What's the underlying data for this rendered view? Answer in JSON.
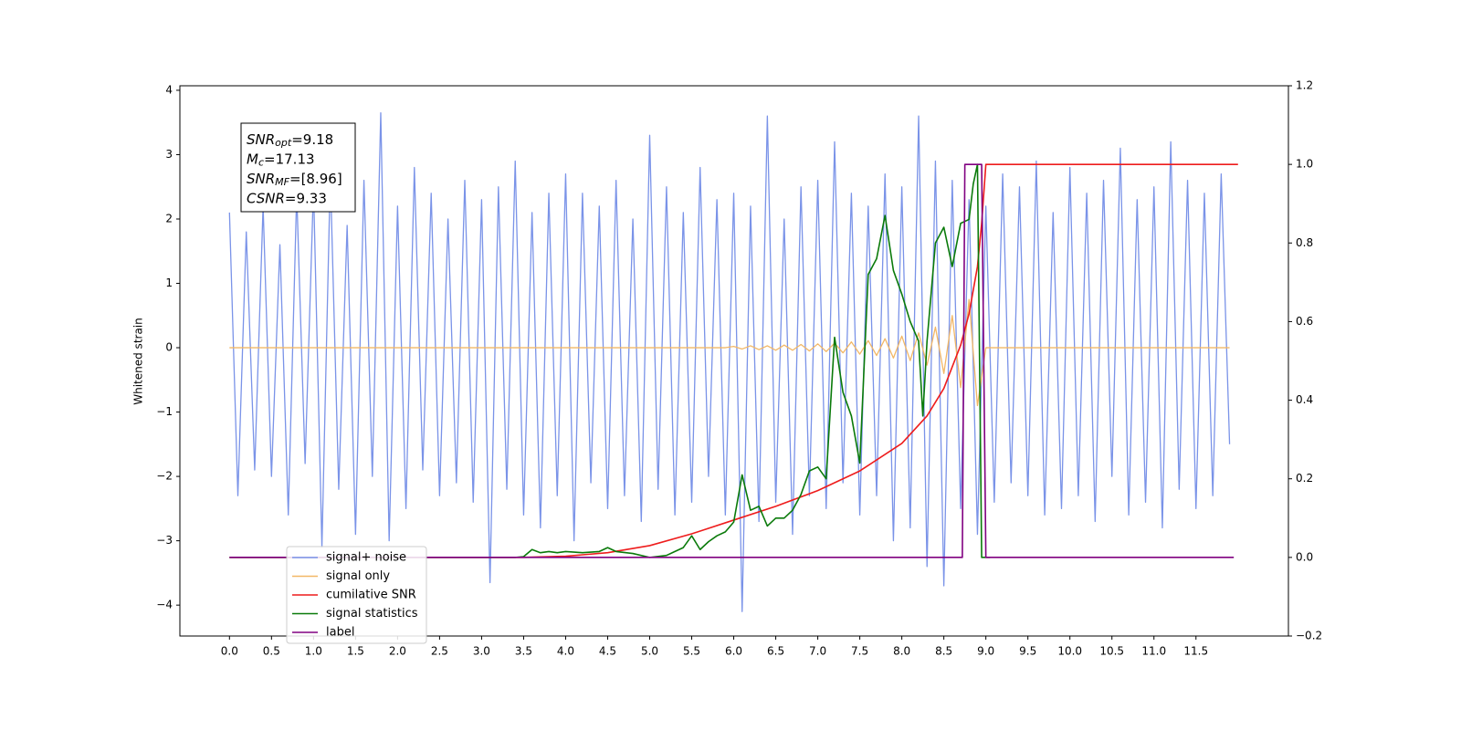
{
  "chart_data": {
    "type": "line",
    "ylabel": "Whitened strain",
    "xlim": [
      -0.59,
      12.6
    ],
    "ylim": [
      -4.48,
      4.07
    ],
    "y2lim": [
      -0.2,
      1.2
    ],
    "xticks": [
      {
        "value": 0,
        "label": "0.0"
      },
      0.5,
      {
        "value": 1,
        "label": "1.0"
      },
      1.5,
      {
        "value": 2,
        "label": "2.0"
      },
      2.5,
      {
        "value": 3,
        "label": "3.0"
      },
      3.5,
      {
        "value": 4,
        "label": "4.0"
      },
      4.5,
      {
        "value": 5,
        "label": "5.0"
      },
      5.5,
      {
        "value": 6,
        "label": "6.0"
      },
      6.5,
      {
        "value": 7,
        "label": "7.0"
      },
      7.5,
      {
        "value": 8,
        "label": "8.0"
      },
      8.5,
      {
        "value": 9,
        "label": "9.0"
      },
      9.5,
      {
        "value": 10,
        "label": "10.0"
      },
      10.5,
      {
        "value": 11,
        "label": "11.0"
      },
      11.5
    ],
    "yticks": [
      {
        "value": -4,
        "label": "−4"
      },
      {
        "value": -3,
        "label": "−3"
      },
      {
        "value": -2,
        "label": "−2"
      },
      {
        "value": -1,
        "label": "−1"
      },
      0,
      1,
      2,
      3,
      4
    ],
    "y2ticks": [
      {
        "value": -0.2,
        "label": "−0.2"
      },
      {
        "value": 0,
        "label": "0.0"
      },
      0.2,
      0.4,
      0.6,
      0.8,
      {
        "value": 1,
        "label": "1.0"
      },
      1.2
    ],
    "annotation": [
      {
        "symbol": "SNR",
        "sub": "opt",
        "text": "=9.18"
      },
      {
        "symbol": "M",
        "sub": "c",
        "text": "=17.13"
      },
      {
        "symbol": "SNR",
        "sub": "MF",
        "text": "=[8.96]"
      },
      {
        "symbol": "CSNR",
        "sub": "",
        "text": "=9.33"
      }
    ],
    "series": [
      {
        "name": "signal+ noise",
        "color": "#7a93e8",
        "axis": "y",
        "x": [
          0,
          0.1,
          0.2,
          0.3,
          0.4,
          0.5,
          0.6,
          0.7,
          0.8,
          0.9,
          1,
          1.1,
          1.2,
          1.3,
          1.4,
          1.5,
          1.6,
          1.7,
          1.8,
          1.9,
          2,
          2.1,
          2.2,
          2.3,
          2.4,
          2.5,
          2.6,
          2.7,
          2.8,
          2.9,
          3,
          3.1,
          3.2,
          3.3,
          3.4,
          3.5,
          3.6,
          3.7,
          3.8,
          3.9,
          4,
          4.1,
          4.2,
          4.3,
          4.4,
          4.5,
          4.6,
          4.7,
          4.8,
          4.9,
          5,
          5.1,
          5.2,
          5.3,
          5.4,
          5.5,
          5.6,
          5.7,
          5.8,
          5.9,
          6,
          6.1,
          6.2,
          6.3,
          6.4,
          6.5,
          6.6,
          6.7,
          6.8,
          6.9,
          7,
          7.1,
          7.2,
          7.3,
          7.4,
          7.5,
          7.6,
          7.7,
          7.8,
          7.9,
          8,
          8.1,
          8.2,
          8.3,
          8.4,
          8.5,
          8.6,
          8.7,
          8.8,
          8.9,
          9,
          9.1,
          9.2,
          9.3,
          9.4,
          9.5,
          9.6,
          9.7,
          9.8,
          9.9,
          10,
          10.1,
          10.2,
          10.3,
          10.4,
          10.5,
          10.6,
          10.7,
          10.8,
          10.9,
          11,
          11.1,
          11.2,
          11.3,
          11.4,
          11.5,
          11.6,
          11.7,
          11.8,
          11.9
        ],
        "values": [
          2.1,
          -2.3,
          1.8,
          -1.9,
          2.2,
          -2.0,
          1.6,
          -2.6,
          2.4,
          -1.8,
          2.5,
          -3.1,
          2.7,
          -2.2,
          1.9,
          -2.9,
          2.6,
          -2.0,
          3.65,
          -3.0,
          2.2,
          -2.5,
          2.8,
          -1.9,
          2.4,
          -2.3,
          2.0,
          -2.1,
          2.6,
          -2.4,
          2.3,
          -3.65,
          2.5,
          -2.2,
          2.9,
          -2.6,
          2.1,
          -2.8,
          2.4,
          -2.3,
          2.7,
          -3.0,
          2.4,
          -2.1,
          2.2,
          -2.5,
          2.6,
          -2.3,
          2.0,
          -2.7,
          3.3,
          -2.2,
          2.5,
          -2.6,
          2.1,
          -2.4,
          2.8,
          -2.0,
          2.3,
          -2.6,
          2.4,
          -4.1,
          2.2,
          -2.7,
          3.6,
          -2.4,
          2.0,
          -2.9,
          2.5,
          -2.3,
          2.6,
          -2.5,
          3.2,
          -2.1,
          2.4,
          -2.6,
          2.2,
          -2.3,
          2.7,
          -3.0,
          2.5,
          -2.8,
          3.6,
          -3.4,
          2.9,
          -3.7,
          2.6,
          -2.5,
          2.3,
          -2.9,
          2.2,
          -2.4,
          2.7,
          -2.1,
          2.5,
          -2.3,
          2.9,
          -2.6,
          2.1,
          -2.5,
          2.8,
          -2.3,
          2.4,
          -2.7,
          2.6,
          -2.0,
          3.1,
          -2.6,
          2.3,
          -2.4,
          2.5,
          -2.8,
          3.2,
          -2.2,
          2.6,
          -2.5,
          2.4,
          -2.3,
          2.7,
          -1.5
        ]
      },
      {
        "name": "signal only",
        "color": "#f2b766",
        "axis": "y",
        "x": [
          0,
          0.1,
          0.2,
          0.3,
          0.4,
          0.5,
          0.6,
          0.7,
          0.8,
          0.9,
          1,
          1.1,
          1.2,
          1.3,
          1.4,
          1.5,
          1.6,
          1.7,
          1.8,
          1.9,
          2,
          2.1,
          2.2,
          2.3,
          2.4,
          2.5,
          2.6,
          2.7,
          2.8,
          2.9,
          3,
          3.1,
          3.2,
          3.3,
          3.4,
          3.5,
          3.6,
          3.7,
          3.8,
          3.9,
          4,
          4.1,
          4.2,
          4.3,
          4.4,
          4.5,
          4.6,
          4.7,
          4.8,
          4.9,
          5,
          5.1,
          5.2,
          5.3,
          5.4,
          5.5,
          5.6,
          5.7,
          5.8,
          5.9,
          6,
          6.1,
          6.2,
          6.3,
          6.4,
          6.5,
          6.6,
          6.7,
          6.8,
          6.9,
          7,
          7.1,
          7.2,
          7.3,
          7.4,
          7.5,
          7.6,
          7.7,
          7.8,
          7.9,
          8,
          8.1,
          8.2,
          8.3,
          8.4,
          8.5,
          8.6,
          8.7,
          8.8,
          8.9,
          9,
          9.1,
          9.2,
          9.3,
          9.4,
          9.5,
          9.6,
          9.7,
          9.8,
          9.9,
          10,
          10.1,
          10.2,
          10.3,
          10.4,
          10.5,
          10.6,
          10.7,
          10.8,
          10.9,
          11,
          11.1,
          11.2,
          11.3,
          11.4,
          11.5,
          11.6,
          11.7,
          11.8,
          11.9
        ],
        "values": [
          0,
          0,
          0,
          0,
          0,
          0,
          0,
          0,
          0,
          0,
          0,
          0,
          0,
          0,
          0,
          0,
          0,
          0,
          0,
          0,
          0,
          0,
          0,
          0,
          0,
          0,
          0,
          0,
          0,
          0,
          0,
          0,
          0,
          0,
          0,
          0,
          0,
          0,
          0,
          0,
          0,
          0,
          0,
          0,
          0,
          0,
          0,
          0,
          0,
          0,
          0,
          0,
          0,
          0,
          0,
          0,
          0,
          0,
          0,
          0,
          0.02,
          -0.02,
          0.03,
          -0.03,
          0.03,
          -0.04,
          0.04,
          -0.04,
          0.05,
          -0.05,
          0.06,
          -0.06,
          0.07,
          -0.08,
          0.09,
          -0.1,
          0.11,
          -0.12,
          0.14,
          -0.16,
          0.18,
          -0.2,
          0.23,
          -0.27,
          0.32,
          -0.4,
          0.5,
          -0.62,
          0.75,
          -0.9,
          0,
          0,
          0,
          0,
          0,
          0,
          0,
          0,
          0,
          0,
          0,
          0,
          0,
          0,
          0,
          0,
          0,
          0,
          0,
          0,
          0,
          0,
          0,
          0,
          0,
          0,
          0,
          0,
          0,
          0
        ]
      },
      {
        "name": "cumilative SNR",
        "color": "#ee1c1c",
        "axis": "y2",
        "x": [
          0,
          3.5,
          4,
          4.5,
          5,
          5.5,
          6,
          6.5,
          7,
          7.5,
          8,
          8.3,
          8.5,
          8.7,
          8.8,
          8.9,
          8.95,
          9,
          12
        ],
        "values": [
          0,
          0,
          0.003,
          0.012,
          0.03,
          0.06,
          0.095,
          0.13,
          0.17,
          0.22,
          0.29,
          0.36,
          0.43,
          0.54,
          0.62,
          0.74,
          0.85,
          1,
          1
        ]
      },
      {
        "name": "signal statistics",
        "color": "#0a7a0a",
        "axis": "y2",
        "x": [
          0,
          3.4,
          3.5,
          3.6,
          3.7,
          3.8,
          3.9,
          4,
          4.2,
          4.4,
          4.5,
          4.6,
          4.8,
          5,
          5.2,
          5.3,
          5.4,
          5.5,
          5.6,
          5.7,
          5.8,
          5.9,
          6,
          6.1,
          6.2,
          6.3,
          6.4,
          6.5,
          6.6,
          6.7,
          6.8,
          6.9,
          7,
          7.1,
          7.2,
          7.3,
          7.4,
          7.5,
          7.6,
          7.7,
          7.8,
          7.9,
          8,
          8.1,
          8.2,
          8.25,
          8.3,
          8.4,
          8.5,
          8.6,
          8.7,
          8.8,
          8.85,
          8.9,
          8.95,
          9.05
        ],
        "values": [
          0,
          0,
          0.002,
          0.02,
          0.012,
          0.015,
          0.012,
          0.015,
          0.012,
          0.015,
          0.025,
          0.015,
          0.01,
          0,
          0.005,
          0.015,
          0.025,
          0.055,
          0.02,
          0.04,
          0.055,
          0.065,
          0.09,
          0.21,
          0.12,
          0.13,
          0.08,
          0.1,
          0.1,
          0.12,
          0.16,
          0.22,
          0.23,
          0.2,
          0.56,
          0.42,
          0.36,
          0.24,
          0.72,
          0.76,
          0.87,
          0.73,
          0.67,
          0.6,
          0.55,
          0.36,
          0.55,
          0.8,
          0.84,
          0.74,
          0.85,
          0.86,
          0.95,
          1,
          0,
          0
        ]
      },
      {
        "name": "label",
        "color": "#800080",
        "axis": "y2",
        "x": [
          0,
          8.72,
          8.75,
          8.95,
          9,
          11.95
        ],
        "values": [
          0,
          0,
          1,
          1,
          0,
          0
        ]
      }
    ]
  }
}
